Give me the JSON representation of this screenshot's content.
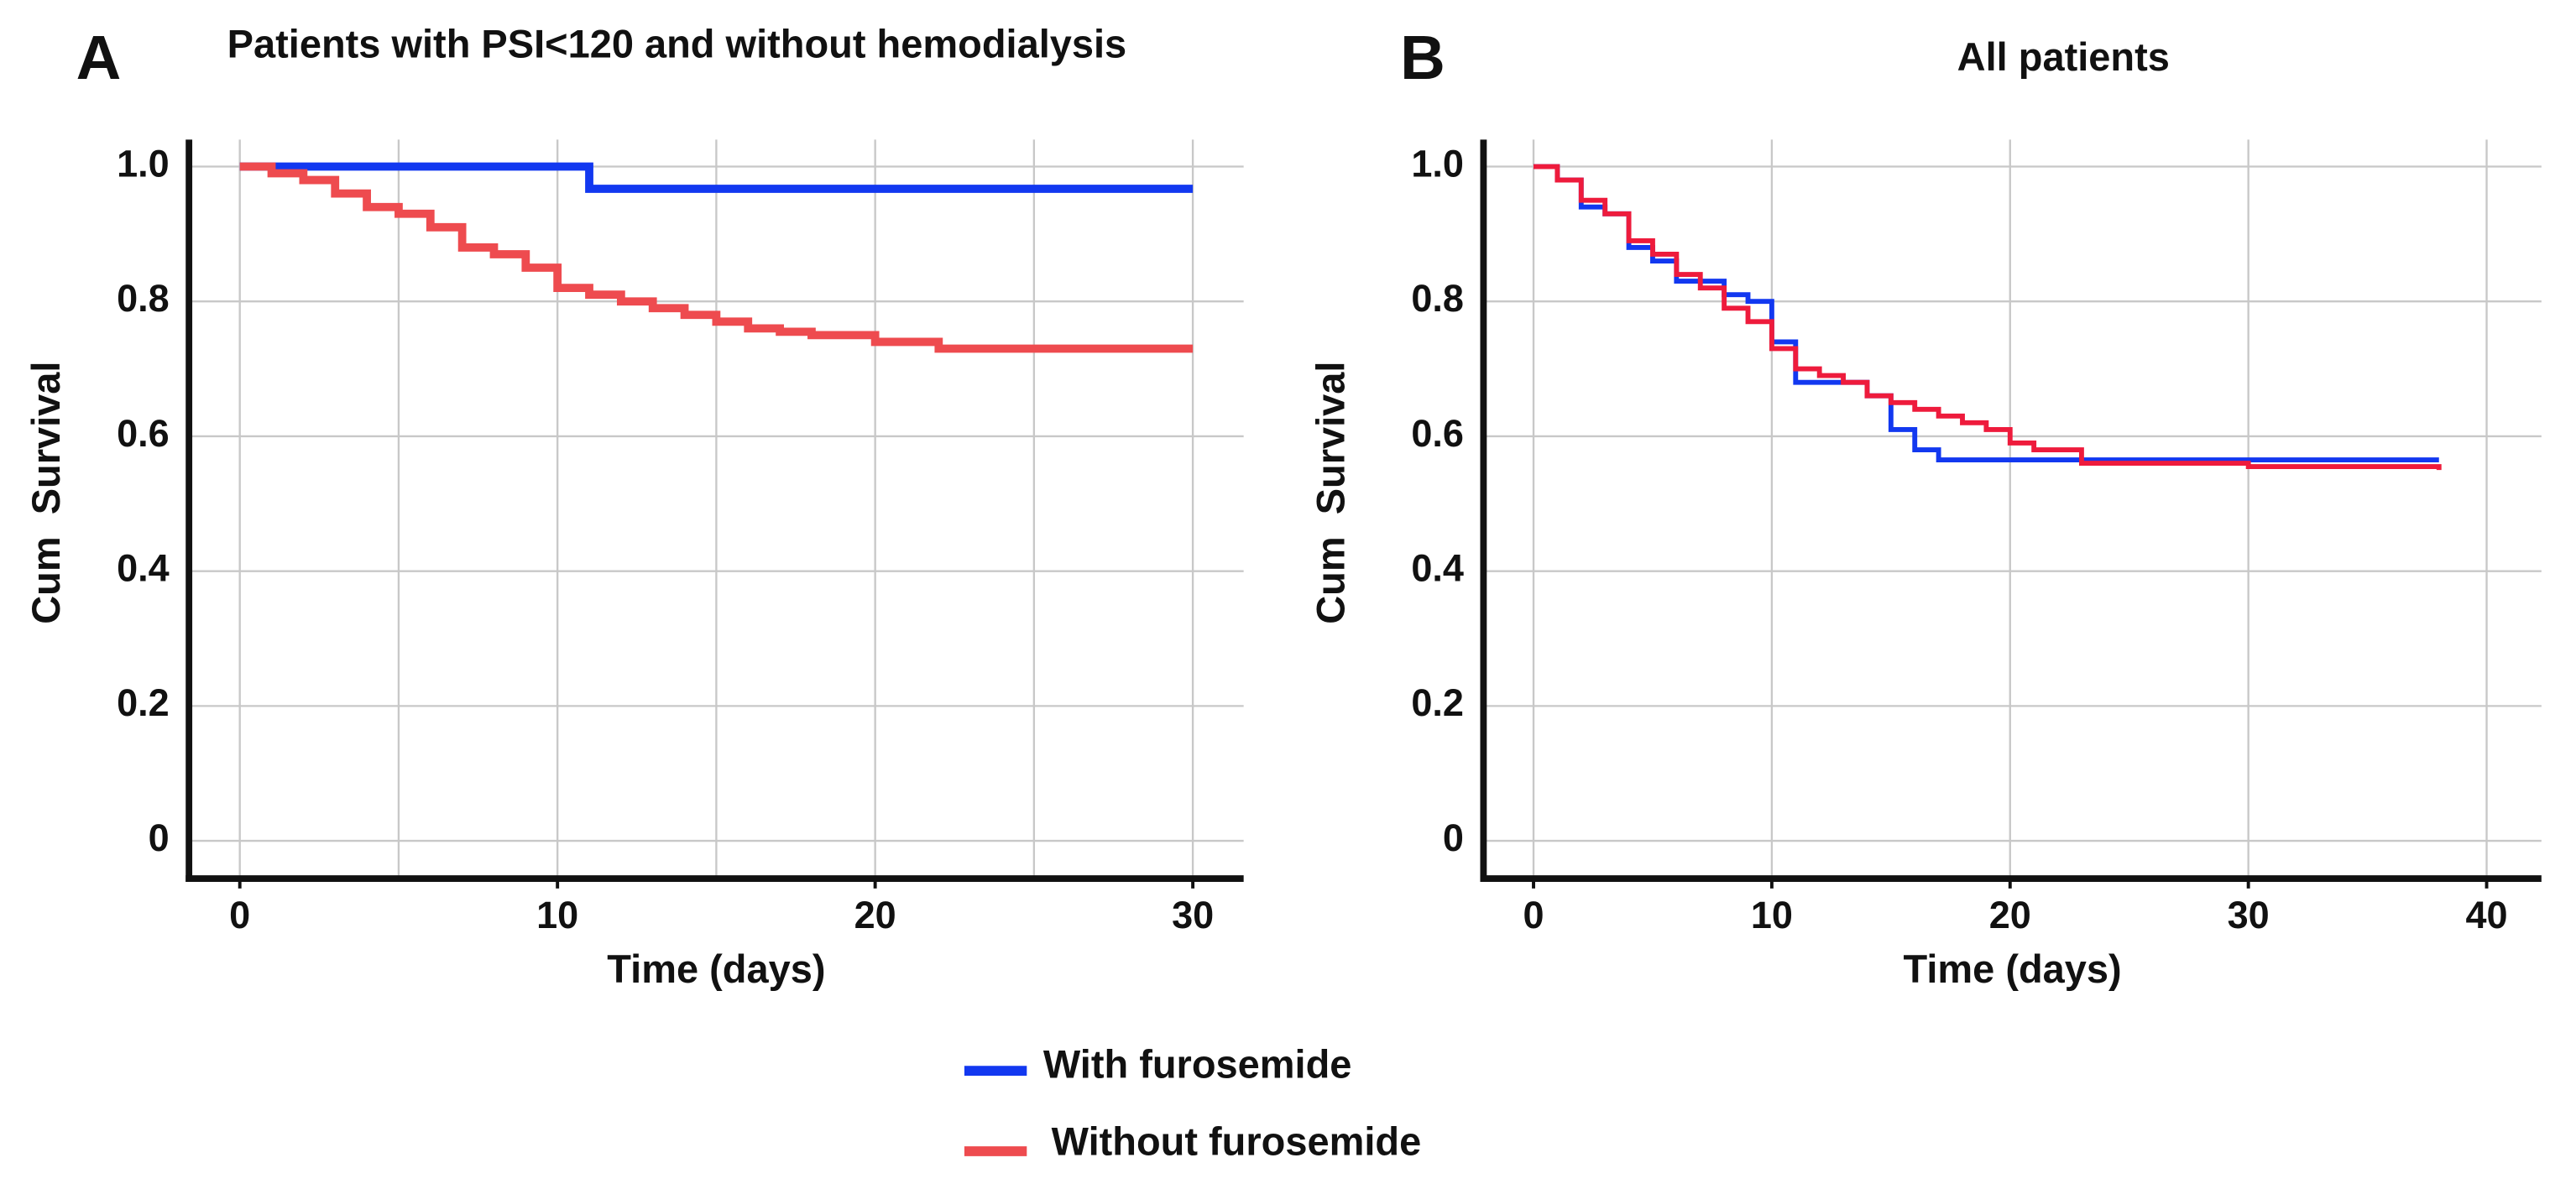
{
  "chart_data": [
    {
      "type": "step",
      "label": "A",
      "title": "Patients with PSI<120 and without hemodialysis",
      "x_label": "Time (days)",
      "y_label": "Cum  Survival",
      "xlim": [
        -1.6,
        31.6
      ],
      "xticks": [
        0,
        10,
        20,
        30
      ],
      "xgrid": [
        0,
        5,
        10,
        15,
        20,
        25,
        30
      ],
      "ylim": [
        -0.056,
        1.04
      ],
      "yticks": [
        0,
        0.2,
        0.4,
        0.6,
        0.8,
        {
          "value": 1,
          "label": "1.0"
        }
      ],
      "grid": true,
      "series": [
        {
          "name": "With furosemide",
          "color": "#1238f0",
          "x": [
            0,
            11,
            30
          ],
          "values": [
            1,
            0.967,
            0.967
          ]
        },
        {
          "name": "Without furosemide",
          "color": "#ee4b4f",
          "x": [
            0,
            1,
            2,
            3,
            4,
            5,
            6,
            7,
            8,
            9,
            10,
            11,
            12,
            13,
            14,
            15,
            16,
            17,
            18,
            20,
            22,
            30
          ],
          "values": [
            1,
            0.99,
            0.98,
            0.96,
            0.94,
            0.93,
            0.91,
            0.88,
            0.87,
            0.85,
            0.82,
            0.81,
            0.8,
            0.79,
            0.78,
            0.77,
            0.76,
            0.755,
            0.75,
            0.74,
            0.73,
            0.73
          ]
        }
      ]
    },
    {
      "type": "step",
      "label": "B",
      "title": "All patients",
      "x_label": "Time (days)",
      "y_label": "Cum  Survival",
      "xlim": [
        -2.1,
        42.3
      ],
      "xticks": [
        0,
        10,
        20,
        30,
        40
      ],
      "xgrid": [
        0,
        10,
        20,
        30,
        40
      ],
      "ylim": [
        -0.056,
        1.04
      ],
      "yticks": [
        0,
        0.2,
        0.4,
        0.6,
        0.8,
        {
          "value": 1,
          "label": "1.0"
        }
      ],
      "grid": true,
      "series": [
        {
          "color": "#1238f0",
          "x": [
            0,
            1,
            2,
            3,
            4,
            5,
            6,
            8,
            9,
            10,
            11,
            14,
            15,
            16,
            17,
            38
          ],
          "values": [
            1,
            0.98,
            0.94,
            0.93,
            0.88,
            0.86,
            0.83,
            0.81,
            0.8,
            0.74,
            0.68,
            0.66,
            0.61,
            0.58,
            0.565,
            0.565
          ]
        },
        {
          "color": "#ee1b3c",
          "x": [
            0,
            1,
            2,
            3,
            4,
            5,
            6,
            7,
            8,
            9,
            10,
            11,
            12,
            13,
            14,
            15,
            16,
            17,
            18,
            19,
            20,
            21,
            23,
            30,
            38
          ],
          "values": [
            1,
            0.98,
            0.95,
            0.93,
            0.89,
            0.87,
            0.84,
            0.82,
            0.79,
            0.77,
            0.73,
            0.7,
            0.69,
            0.68,
            0.66,
            0.65,
            0.64,
            0.63,
            0.62,
            0.61,
            0.59,
            0.58,
            0.56,
            0.555,
            0.55
          ]
        }
      ]
    }
  ]
}
